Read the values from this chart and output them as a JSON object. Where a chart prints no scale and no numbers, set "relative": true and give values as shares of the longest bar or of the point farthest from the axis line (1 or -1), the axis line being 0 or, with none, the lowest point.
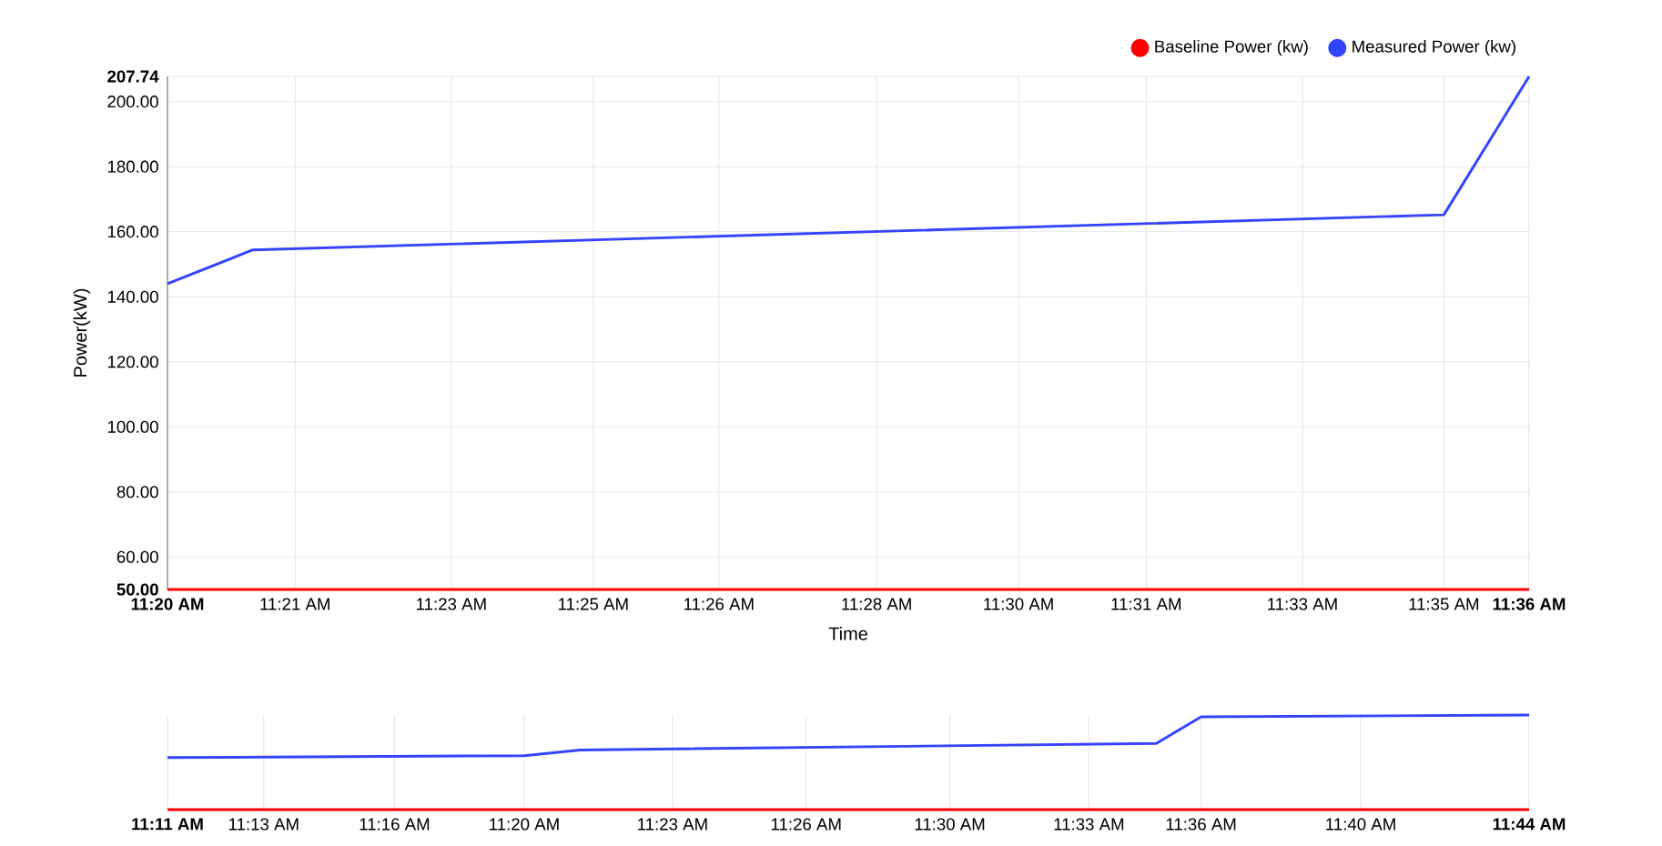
{
  "chart_data": [
    {
      "type": "line",
      "xlabel": "Time",
      "ylabel": "Power(kW)",
      "legend": "top right",
      "grid": true,
      "marker": "none",
      "line_style": "solid",
      "xlim": [
        11.3333,
        11.6
      ],
      "ylim": [
        50,
        207.74
      ],
      "xticks": [
        {
          "value": 11.3333,
          "label": "11:20 AM"
        },
        {
          "value": 11.3583,
          "label": "11:21 AM"
        },
        {
          "value": 11.3889,
          "label": "11:23 AM"
        },
        {
          "value": 11.4167,
          "label": "11:25 AM"
        },
        {
          "value": 11.4413,
          "label": "11:26 AM"
        },
        {
          "value": 11.4722,
          "label": "11:28 AM"
        },
        {
          "value": 11.5,
          "label": "11:30 AM"
        },
        {
          "value": 11.525,
          "label": "11:31 AM"
        },
        {
          "value": 11.5556,
          "label": "11:33 AM"
        },
        {
          "value": 11.5833,
          "label": "11:35 AM"
        },
        {
          "value": 11.6,
          "label": "11:36 AM"
        }
      ],
      "yticks": [
        {
          "value": 50,
          "label": "50.00"
        },
        {
          "value": 60,
          "label": "60.00"
        },
        {
          "value": 80,
          "label": "80.00"
        },
        {
          "value": 100,
          "label": "100.00"
        },
        {
          "value": 120,
          "label": "120.00"
        },
        {
          "value": 140,
          "label": "140.00"
        },
        {
          "value": 160,
          "label": "160.00"
        },
        {
          "value": 180,
          "label": "180.00"
        },
        {
          "value": 200,
          "label": "200.00"
        },
        207.74
      ],
      "series": [
        {
          "name": "Baseline Power (kw)",
          "color": "#ff0000",
          "x": [
            11.3333,
            11.6
          ],
          "values": [
            50,
            50
          ]
        },
        {
          "name": "Measured Power (kw)",
          "color": "#3344ff",
          "x": [
            11.3333,
            11.35,
            11.5833,
            11.6
          ],
          "values": [
            144,
            154.4,
            165.2,
            207.74
          ]
        }
      ]
    },
    {
      "type": "line",
      "relative": true,
      "grid": "x",
      "tick_labels": "x",
      "marker": "none",
      "line_style": "solid",
      "xlim": [
        11.1833,
        11.7333
      ],
      "xticks": [
        {
          "value": 11.1833,
          "label": "11:11 AM"
        },
        {
          "value": 11.2222,
          "label": "11:13 AM"
        },
        {
          "value": 11.275,
          "label": "11:16 AM"
        },
        {
          "value": 11.3274,
          "label": "11:20 AM"
        },
        {
          "value": 11.3873,
          "label": "11:23 AM"
        },
        {
          "value": 11.4413,
          "label": "11:26 AM"
        },
        {
          "value": 11.4993,
          "label": "11:30 AM"
        },
        {
          "value": 11.5555,
          "label": "11:33 AM"
        },
        {
          "value": 11.6008,
          "label": "11:36 AM"
        },
        {
          "value": 11.6653,
          "label": "11:40 AM"
        },
        {
          "value": 11.7333,
          "label": "11:44 AM"
        }
      ],
      "series": [
        {
          "color": "#ff0000",
          "x": [
            11.1833,
            11.7333
          ],
          "values": [
            0,
            0
          ]
        },
        {
          "color": "#3344ff",
          "x": [
            11.1833,
            11.3274,
            11.35,
            11.5827,
            11.6008,
            11.7333
          ],
          "values": [
            0.55,
            0.57,
            0.63,
            0.7,
            0.98,
            1
          ]
        }
      ]
    }
  ]
}
